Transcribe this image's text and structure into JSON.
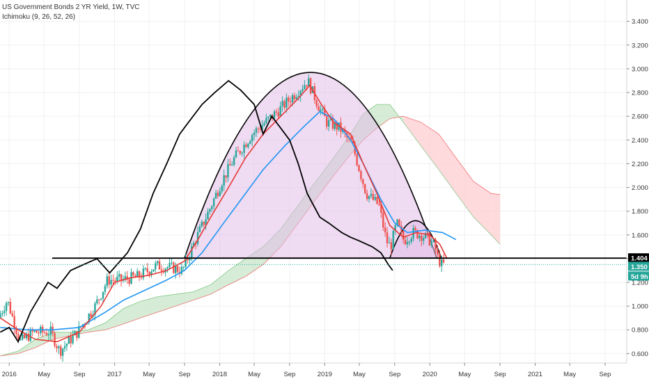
{
  "header": {
    "title": "US Government Bonds 2 YR Yield, 1W, TVC",
    "indicator": "Ichimoku (9, 26, 52, 26)"
  },
  "colors": {
    "price_up": "#26a69a",
    "price_down": "#ef5350",
    "conversion_line": "#e53935",
    "base_line": "#2196f3",
    "lagging_span": "#000000",
    "cloud_bull": "#c8e6c9",
    "cloud_bear": "#ffcdd2",
    "pattern_fill": "#e1bee7",
    "support_line": "#000000",
    "dotted_line": "#26a69a",
    "axis_text": "#333333",
    "grid": "#f0f0f0"
  },
  "chart_data": {
    "type": "candlestick",
    "y_axis": {
      "ylim": [
        0.52,
        3.58
      ],
      "ticks": [
        "3.400",
        "3.200",
        "3.000",
        "2.800",
        "2.600",
        "2.400",
        "2.200",
        "2.000",
        "1.800",
        "1.600",
        "1.400",
        "1.200",
        "1.000",
        "0.800",
        "0.600"
      ],
      "tick_values": [
        3.4,
        3.2,
        3.0,
        2.8,
        2.6,
        2.4,
        2.2,
        2.0,
        1.8,
        1.6,
        1.4,
        1.2,
        1.0,
        0.8,
        0.6
      ]
    },
    "x_axis": {
      "range": [
        "2015-11-30",
        "2021-11-15"
      ],
      "ticks": [
        {
          "label": "2016",
          "date": "2016-01-01"
        },
        {
          "label": "May",
          "date": "2016-05-01"
        },
        {
          "label": "Sep",
          "date": "2016-09-01"
        },
        {
          "label": "2017",
          "date": "2017-01-01"
        },
        {
          "label": "May",
          "date": "2017-05-01"
        },
        {
          "label": "Sep",
          "date": "2017-09-01"
        },
        {
          "label": "2018",
          "date": "2018-01-01"
        },
        {
          "label": "May",
          "date": "2018-05-01"
        },
        {
          "label": "Sep",
          "date": "2018-09-01"
        },
        {
          "label": "2019",
          "date": "2019-01-01"
        },
        {
          "label": "May",
          "date": "2019-05-01"
        },
        {
          "label": "Sep",
          "date": "2019-09-01"
        },
        {
          "label": "2020",
          "date": "2020-01-01"
        },
        {
          "label": "May",
          "date": "2020-05-01"
        },
        {
          "label": "Sep",
          "date": "2020-09-01"
        },
        {
          "label": "2021",
          "date": "2021-01-01"
        },
        {
          "label": "May",
          "date": "2021-05-01"
        },
        {
          "label": "Sep",
          "date": "2021-09-01"
        }
      ]
    },
    "price_series": {
      "dates": [
        "2015-12-01",
        "2016-01-01",
        "2016-02-15",
        "2016-04-01",
        "2016-06-01",
        "2016-07-01",
        "2016-09-01",
        "2016-11-01",
        "2016-12-15",
        "2017-02-01",
        "2017-04-01",
        "2017-06-01",
        "2017-08-01",
        "2017-09-01",
        "2017-10-15",
        "2017-12-01",
        "2018-01-15",
        "2018-03-01",
        "2018-05-01",
        "2018-06-15",
        "2018-08-01",
        "2018-10-01",
        "2018-11-10",
        "2018-12-15",
        "2019-01-15",
        "2019-03-01",
        "2019-04-15",
        "2019-06-01",
        "2019-07-15",
        "2019-08-10",
        "2019-08-25",
        "2019-09-15",
        "2019-10-10",
        "2019-11-10",
        "2019-12-10",
        "2020-01-10",
        "2020-01-25",
        "2020-02-05",
        "2020-02-18"
      ],
      "values": [
        0.9,
        1.05,
        0.7,
        0.78,
        0.78,
        0.62,
        0.78,
        1.0,
        1.22,
        1.22,
        1.25,
        1.34,
        1.32,
        1.3,
        1.55,
        1.8,
        2.05,
        2.25,
        2.45,
        2.55,
        2.65,
        2.8,
        2.9,
        2.7,
        2.55,
        2.5,
        2.35,
        1.95,
        1.85,
        1.55,
        1.5,
        1.7,
        1.55,
        1.62,
        1.6,
        1.55,
        1.5,
        1.4,
        1.35
      ]
    },
    "conversion_line": {
      "dates": [
        "2015-12-01",
        "2016-02-01",
        "2016-04-01",
        "2016-06-15",
        "2016-09-01",
        "2016-11-15",
        "2017-01-01",
        "2017-03-01",
        "2017-05-01",
        "2017-07-01",
        "2017-09-01",
        "2017-10-15",
        "2017-12-01",
        "2018-02-01",
        "2018-04-01",
        "2018-06-01",
        "2018-08-01",
        "2018-10-01",
        "2018-11-10",
        "2018-12-20",
        "2019-02-01",
        "2019-04-01",
        "2019-05-15",
        "2019-07-01",
        "2019-08-15",
        "2019-10-01",
        "2019-11-15",
        "2020-01-01",
        "2020-02-05",
        "2020-03-01"
      ],
      "values": [
        0.9,
        0.8,
        0.72,
        0.7,
        0.78,
        1.0,
        1.2,
        1.24,
        1.26,
        1.3,
        1.38,
        1.55,
        1.75,
        2.0,
        2.25,
        2.45,
        2.6,
        2.75,
        2.86,
        2.7,
        2.55,
        2.45,
        2.2,
        1.95,
        1.68,
        1.58,
        1.62,
        1.6,
        1.52,
        1.4
      ]
    },
    "base_line": {
      "dates": [
        "2015-12-01",
        "2016-03-01",
        "2016-06-01",
        "2016-09-01",
        "2016-12-01",
        "2017-02-01",
        "2017-05-01",
        "2017-07-01",
        "2017-09-01",
        "2017-11-01",
        "2018-01-15",
        "2018-04-01",
        "2018-06-01",
        "2018-08-15",
        "2018-10-15",
        "2018-12-15",
        "2019-02-01",
        "2019-04-01",
        "2019-05-15",
        "2019-07-15",
        "2019-09-01",
        "2019-10-15",
        "2019-12-15",
        "2020-02-15",
        "2020-04-01"
      ],
      "values": [
        0.82,
        0.8,
        0.8,
        0.82,
        0.95,
        1.05,
        1.15,
        1.22,
        1.3,
        1.45,
        1.7,
        1.95,
        2.15,
        2.35,
        2.5,
        2.64,
        2.58,
        2.4,
        2.2,
        1.9,
        1.7,
        1.62,
        1.64,
        1.62,
        1.56
      ]
    },
    "lagging_span": {
      "dates": [
        "2015-12-01",
        "2016-01-01",
        "2016-02-01",
        "2016-03-15",
        "2016-05-15",
        "2016-06-15",
        "2016-08-01",
        "2016-09-15",
        "2016-11-01",
        "2016-12-15",
        "2017-02-15",
        "2017-04-01",
        "2017-05-15",
        "2017-07-01",
        "2017-08-15",
        "2017-09-15",
        "2017-11-01",
        "2017-12-15",
        "2018-02-01",
        "2018-03-15",
        "2018-05-01",
        "2018-06-01",
        "2018-07-01",
        "2018-08-01",
        "2018-09-01",
        "2018-10-01",
        "2018-11-01",
        "2018-12-15",
        "2019-01-15",
        "2019-03-01",
        "2019-04-01",
        "2019-05-01",
        "2019-06-15",
        "2019-07-15",
        "2019-08-10",
        "2019-08-25"
      ],
      "values": [
        0.78,
        0.82,
        0.7,
        0.95,
        1.2,
        1.15,
        1.3,
        1.35,
        1.4,
        1.28,
        1.45,
        1.65,
        1.95,
        2.2,
        2.45,
        2.55,
        2.7,
        2.8,
        2.9,
        2.82,
        2.7,
        2.45,
        2.6,
        2.5,
        2.4,
        2.2,
        1.95,
        1.75,
        1.7,
        1.62,
        1.58,
        1.55,
        1.5,
        1.45,
        1.35,
        1.3
      ]
    },
    "cloud": {
      "dates": [
        "2015-12-01",
        "2016-02-01",
        "2016-04-01",
        "2016-06-01",
        "2016-08-01",
        "2016-10-01",
        "2016-12-01",
        "2017-02-01",
        "2017-04-01",
        "2017-06-01",
        "2017-08-01",
        "2017-10-01",
        "2017-12-01",
        "2018-02-01",
        "2018-04-01",
        "2018-06-01",
        "2018-08-01",
        "2018-10-01",
        "2018-12-01",
        "2019-02-01",
        "2019-04-01",
        "2019-05-15",
        "2019-07-01",
        "2019-08-15",
        "2019-10-01",
        "2019-12-01",
        "2020-02-01",
        "2020-04-01",
        "2020-06-01",
        "2020-08-01",
        "2020-09-01"
      ],
      "span_a": [
        0.58,
        0.62,
        0.72,
        0.78,
        0.78,
        0.8,
        0.86,
        0.98,
        1.04,
        1.08,
        1.1,
        1.12,
        1.18,
        1.3,
        1.4,
        1.5,
        1.65,
        1.85,
        2.05,
        2.25,
        2.45,
        2.62,
        2.7,
        2.7,
        2.55,
        2.35,
        2.15,
        1.95,
        1.75,
        1.6,
        1.52
      ],
      "span_b": [
        0.58,
        0.6,
        0.65,
        0.72,
        0.75,
        0.78,
        0.8,
        0.85,
        0.9,
        0.95,
        1.0,
        1.05,
        1.1,
        1.18,
        1.25,
        1.35,
        1.5,
        1.7,
        1.9,
        2.1,
        2.28,
        2.4,
        2.5,
        2.58,
        2.6,
        2.55,
        2.45,
        2.25,
        2.05,
        1.95,
        1.94
      ]
    },
    "support_level": 1.404,
    "current_price": 1.35,
    "price_labels": {
      "support": "1.404",
      "current": "1.350",
      "countdown": "5d 9h"
    },
    "pattern_arcs": [
      {
        "name": "large-dome",
        "start": "2017-09-01",
        "end": "2020-01-25",
        "peak": 2.97,
        "base": 1.404
      },
      {
        "name": "small-dome",
        "start": "2019-08-15",
        "end": "2020-02-10",
        "peak": 1.72,
        "base": 1.404
      }
    ]
  }
}
